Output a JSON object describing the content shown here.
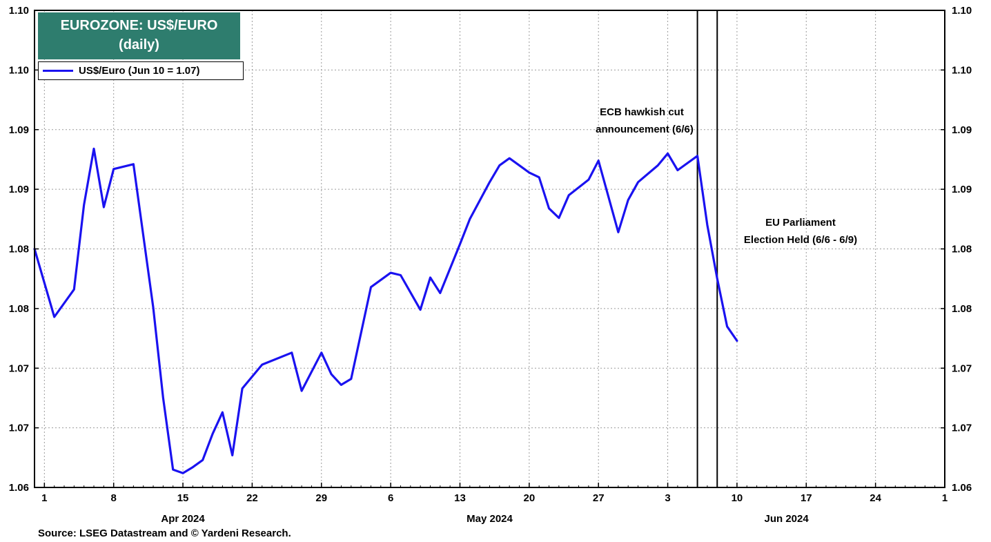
{
  "title": {
    "line1": "EUROZONE: US$/EURO",
    "line2": "(daily)",
    "background": "#2e7d6e"
  },
  "legend": {
    "label": "US$/Euro (Jun 10 = 1.07)",
    "color": "#1a12f0"
  },
  "source": "Source: LSEG Datastream and © Yardeni Research.",
  "annotations": {
    "ecb_line1": "ECB hawkish cut",
    "ecb_line2": "announcement (6/6)",
    "eu_line1": "EU Parliament",
    "eu_line2": "Election Held (6/6 - 6/9)"
  },
  "chart_data": {
    "type": "line",
    "x_scale": "date",
    "x_range": [
      "2024-03-31",
      "2024-07-01"
    ],
    "ylim": [
      1.06,
      1.1
    ],
    "y_ticks": [
      {
        "value": 1.06,
        "label": "1.06"
      },
      {
        "value": 1.065,
        "label": "1.07"
      },
      {
        "value": 1.07,
        "label": "1.07"
      },
      {
        "value": 1.075,
        "label": "1.08"
      },
      {
        "value": 1.08,
        "label": "1.08"
      },
      {
        "value": 1.085,
        "label": "1.09"
      },
      {
        "value": 1.09,
        "label": "1.09"
      },
      {
        "value": 1.095,
        "label": "1.10"
      },
      {
        "value": 1.1,
        "label": "1.10"
      }
    ],
    "x_ticks": [
      {
        "date": "2024-04-01",
        "label": "1"
      },
      {
        "date": "2024-04-08",
        "label": "8"
      },
      {
        "date": "2024-04-15",
        "label": "15"
      },
      {
        "date": "2024-04-22",
        "label": "22"
      },
      {
        "date": "2024-04-29",
        "label": "29"
      },
      {
        "date": "2024-05-06",
        "label": "6"
      },
      {
        "date": "2024-05-13",
        "label": "13"
      },
      {
        "date": "2024-05-20",
        "label": "20"
      },
      {
        "date": "2024-05-27",
        "label": "27"
      },
      {
        "date": "2024-06-03",
        "label": "3"
      },
      {
        "date": "2024-06-10",
        "label": "10"
      },
      {
        "date": "2024-06-17",
        "label": "17"
      },
      {
        "date": "2024-06-24",
        "label": "24"
      },
      {
        "date": "2024-07-01",
        "label": "1"
      }
    ],
    "month_labels": [
      {
        "date": "2024-04-15",
        "label": "Apr 2024"
      },
      {
        "date": "2024-05-16",
        "label": "May 2024"
      },
      {
        "date": "2024-06-15",
        "label": "Jun 2024"
      }
    ],
    "vlines": [
      {
        "date": "2024-06-06"
      },
      {
        "date": "2024-06-08"
      }
    ],
    "grid": true,
    "series": [
      {
        "name": "US$/Euro (Jun 10 = 1.07)",
        "color": "#1a12f0",
        "points": [
          {
            "x": "2024-03-31",
            "y": 1.08
          },
          {
            "x": "2024-04-02",
            "y": 1.0743
          },
          {
            "x": "2024-04-04",
            "y": 1.0766
          },
          {
            "x": "2024-04-05",
            "y": 1.0837
          },
          {
            "x": "2024-04-06",
            "y": 1.0884
          },
          {
            "x": "2024-04-07",
            "y": 1.0835
          },
          {
            "x": "2024-04-08",
            "y": 1.0867
          },
          {
            "x": "2024-04-10",
            "y": 1.0871
          },
          {
            "x": "2024-04-12",
            "y": 1.0751
          },
          {
            "x": "2024-04-13",
            "y": 1.0675
          },
          {
            "x": "2024-04-14",
            "y": 1.0615
          },
          {
            "x": "2024-04-15",
            "y": 1.0612
          },
          {
            "x": "2024-04-16",
            "y": 1.0617
          },
          {
            "x": "2024-04-17",
            "y": 1.0623
          },
          {
            "x": "2024-04-18",
            "y": 1.0645
          },
          {
            "x": "2024-04-19",
            "y": 1.0663
          },
          {
            "x": "2024-04-20",
            "y": 1.0627
          },
          {
            "x": "2024-04-21",
            "y": 1.0683
          },
          {
            "x": "2024-04-23",
            "y": 1.0703
          },
          {
            "x": "2024-04-26",
            "y": 1.0713
          },
          {
            "x": "2024-04-27",
            "y": 1.0681
          },
          {
            "x": "2024-04-29",
            "y": 1.0713
          },
          {
            "x": "2024-04-30",
            "y": 1.0695
          },
          {
            "x": "2024-05-01",
            "y": 1.0686
          },
          {
            "x": "2024-05-02",
            "y": 1.0691
          },
          {
            "x": "2024-05-04",
            "y": 1.0768
          },
          {
            "x": "2024-05-06",
            "y": 1.078
          },
          {
            "x": "2024-05-07",
            "y": 1.0778
          },
          {
            "x": "2024-05-09",
            "y": 1.0749
          },
          {
            "x": "2024-05-10",
            "y": 1.0776
          },
          {
            "x": "2024-05-11",
            "y": 1.0763
          },
          {
            "x": "2024-05-13",
            "y": 1.0804
          },
          {
            "x": "2024-05-14",
            "y": 1.0825
          },
          {
            "x": "2024-05-16",
            "y": 1.0856
          },
          {
            "x": "2024-05-17",
            "y": 1.087
          },
          {
            "x": "2024-05-18",
            "y": 1.0876
          },
          {
            "x": "2024-05-20",
            "y": 1.0864
          },
          {
            "x": "2024-05-21",
            "y": 1.086
          },
          {
            "x": "2024-05-22",
            "y": 1.0834
          },
          {
            "x": "2024-05-23",
            "y": 1.0826
          },
          {
            "x": "2024-05-24",
            "y": 1.0845
          },
          {
            "x": "2024-05-26",
            "y": 1.0858
          },
          {
            "x": "2024-05-27",
            "y": 1.0874
          },
          {
            "x": "2024-05-29",
            "y": 1.0814
          },
          {
            "x": "2024-05-30",
            "y": 1.0841
          },
          {
            "x": "2024-05-31",
            "y": 1.0856
          },
          {
            "x": "2024-06-02",
            "y": 1.087
          },
          {
            "x": "2024-06-03",
            "y": 1.088
          },
          {
            "x": "2024-06-04",
            "y": 1.0866
          },
          {
            "x": "2024-06-06",
            "y": 1.0878
          },
          {
            "x": "2024-06-07",
            "y": 1.082
          },
          {
            "x": "2024-06-08",
            "y": 1.0775
          },
          {
            "x": "2024-06-09",
            "y": 1.0735
          },
          {
            "x": "2024-06-10",
            "y": 1.0723
          }
        ]
      }
    ]
  }
}
